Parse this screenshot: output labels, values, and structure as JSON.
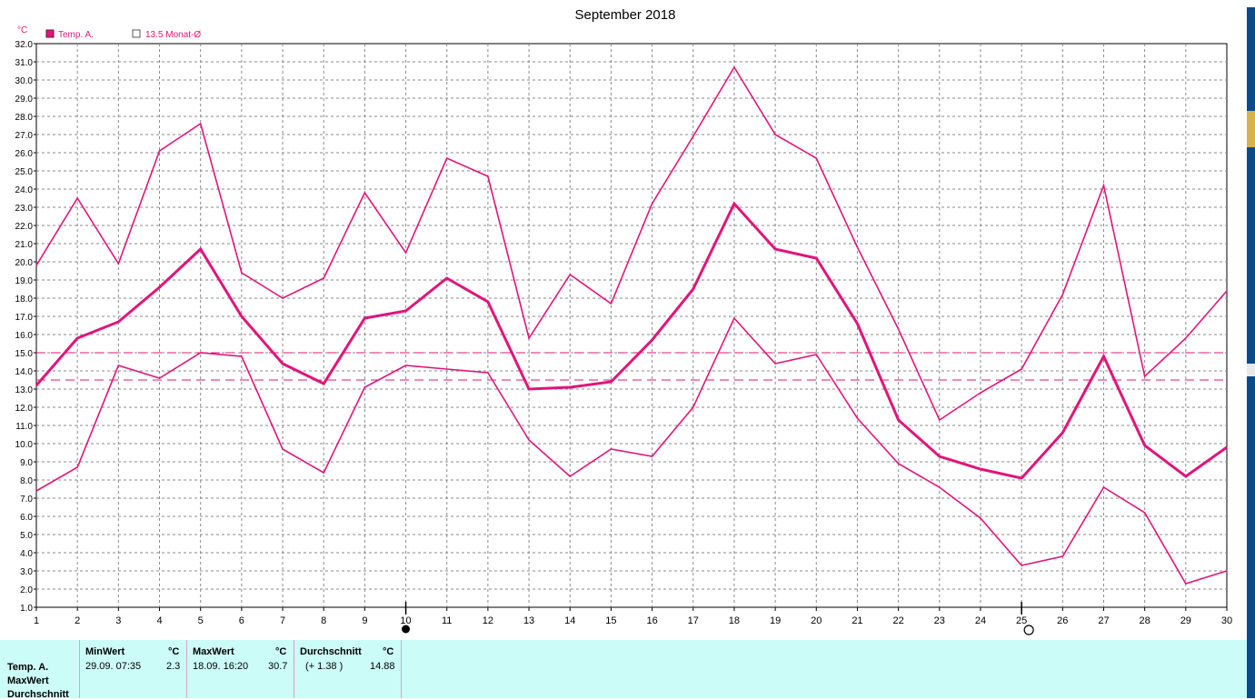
{
  "chart_data": {
    "type": "line",
    "title": "September 2018",
    "ylabel": "°C",
    "ylim": [
      1.0,
      32.0
    ],
    "yticks": [
      "1.0",
      "2.0",
      "3.0",
      "4.0",
      "5.0",
      "6.0",
      "7.0",
      "8.0",
      "9.0",
      "10.0",
      "11.0",
      "12.0",
      "13.0",
      "14.0",
      "15.0",
      "16.0",
      "17.0",
      "18.0",
      "19.0",
      "20.0",
      "21.0",
      "22.0",
      "23.0",
      "24.0",
      "25.0",
      "26.0",
      "27.0",
      "28.0",
      "29.0",
      "30.0",
      "31.0",
      "32.0"
    ],
    "x": [
      1,
      2,
      3,
      4,
      5,
      6,
      7,
      8,
      9,
      10,
      11,
      12,
      13,
      14,
      15,
      16,
      17,
      18,
      19,
      20,
      21,
      22,
      23,
      24,
      25,
      26,
      27,
      28,
      29,
      30
    ],
    "legend": [
      {
        "label": "Temp. A.",
        "filled": true
      },
      {
        "label": "13.5 Monat-Ø",
        "filled": false
      }
    ],
    "series": [
      {
        "name": "Temp. A.",
        "role": "avg",
        "values": [
          13.2,
          15.8,
          16.7,
          18.6,
          20.7,
          17.0,
          14.4,
          13.3,
          16.9,
          17.3,
          19.1,
          17.8,
          13.0,
          13.1,
          13.4,
          15.7,
          18.5,
          23.2,
          20.7,
          20.2,
          16.6,
          11.3,
          9.3,
          8.6,
          8.1,
          10.6,
          14.8,
          9.9,
          8.2,
          9.8
        ]
      },
      {
        "role": "max",
        "values": [
          19.8,
          23.5,
          19.9,
          26.1,
          27.6,
          19.4,
          18.0,
          19.1,
          23.8,
          20.5,
          25.7,
          24.7,
          15.8,
          19.3,
          17.7,
          23.2,
          26.9,
          30.7,
          27.0,
          25.7,
          20.8,
          16.3,
          11.3,
          12.8,
          14.1,
          18.2,
          24.2,
          13.7,
          15.8,
          18.4
        ]
      },
      {
        "role": "min",
        "values": [
          7.4,
          8.7,
          14.3,
          13.6,
          15.0,
          14.8,
          9.7,
          8.4,
          13.1,
          14.3,
          14.1,
          13.9,
          10.2,
          8.2,
          9.7,
          9.3,
          12.0,
          16.9,
          14.4,
          14.9,
          11.4,
          8.9,
          7.6,
          5.9,
          3.3,
          3.8,
          7.6,
          6.2,
          2.3,
          3.0
        ]
      }
    ],
    "reference_lines": [
      {
        "value": 15.0
      },
      {
        "value": 13.5
      }
    ],
    "moon_markers": [
      {
        "day": 10,
        "phase": "new"
      },
      {
        "day": 25,
        "phase": "full"
      }
    ],
    "grid": true,
    "colors": {
      "line": "#e0157a",
      "grid": "#8a8a8a",
      "axis": "#000000"
    }
  },
  "stats": {
    "row_labels": [
      "Temp. A.",
      "MaxWert",
      "Durchschnitt"
    ],
    "min": {
      "header": "MinWert",
      "unit": "°C",
      "date": "29.09.  07:35",
      "value": "2.3"
    },
    "max": {
      "header": "MaxWert",
      "unit": "°C",
      "date": "18.09.  16:20",
      "value": "30.7"
    },
    "avg": {
      "header": "Durchschnitt",
      "unit": "°C",
      "delta": "(+ 1.38 )",
      "value": "14.88"
    }
  }
}
